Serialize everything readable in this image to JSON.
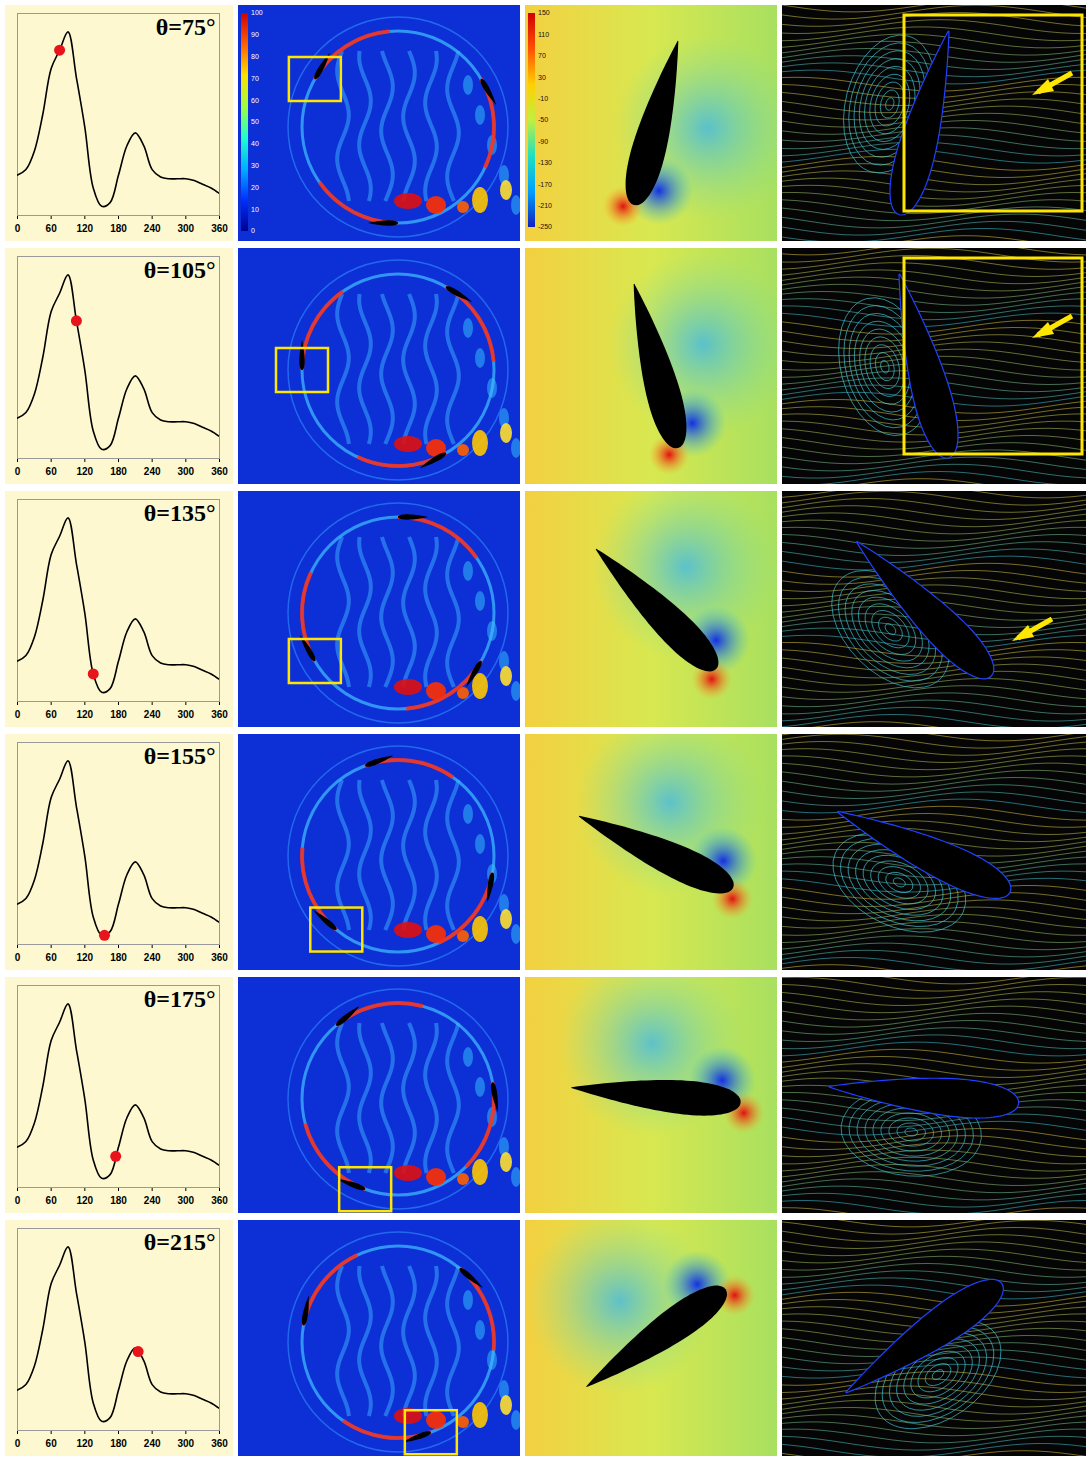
{
  "chart_data": [
    {
      "type": "line",
      "title": "θ=75°",
      "x": [
        0,
        15,
        30,
        45,
        60,
        75,
        90,
        105,
        120,
        135,
        150,
        165,
        180,
        195,
        210,
        225,
        240,
        255,
        270,
        285,
        300,
        315,
        330,
        345,
        360
      ],
      "values": [
        0.22,
        0.25,
        0.35,
        0.55,
        0.8,
        0.9,
        1.0,
        0.75,
        0.48,
        0.15,
        0.05,
        0.07,
        0.22,
        0.38,
        0.45,
        0.38,
        0.25,
        0.21,
        0.2,
        0.2,
        0.2,
        0.19,
        0.17,
        0.15,
        0.12
      ],
      "color": "#000000",
      "highlight": {
        "x": 75,
        "y": 0.9,
        "color": "#e8141b"
      },
      "xlim": [
        0,
        360
      ],
      "xticks": [
        0,
        60,
        120,
        180,
        240,
        300,
        360
      ],
      "ylim": [
        0,
        1.1
      ],
      "tick_labels": "x"
    },
    {
      "type": "line",
      "title": "θ=105°",
      "x": [
        0,
        15,
        30,
        45,
        60,
        75,
        90,
        105,
        120,
        135,
        150,
        165,
        180,
        195,
        210,
        225,
        240,
        255,
        270,
        285,
        300,
        315,
        330,
        345,
        360
      ],
      "values": [
        0.22,
        0.25,
        0.35,
        0.55,
        0.8,
        0.9,
        1.0,
        0.75,
        0.48,
        0.15,
        0.05,
        0.07,
        0.22,
        0.38,
        0.45,
        0.38,
        0.25,
        0.21,
        0.2,
        0.2,
        0.2,
        0.19,
        0.17,
        0.15,
        0.12
      ],
      "color": "#000000",
      "highlight": {
        "x": 105,
        "y": 0.75,
        "color": "#e8141b"
      },
      "xlim": [
        0,
        360
      ],
      "xticks": [
        0,
        60,
        120,
        180,
        240,
        300,
        360
      ],
      "ylim": [
        0,
        1.1
      ],
      "tick_labels": "x"
    },
    {
      "type": "line",
      "title": "θ=135°",
      "x": [
        0,
        15,
        30,
        45,
        60,
        75,
        90,
        105,
        120,
        135,
        150,
        165,
        180,
        195,
        210,
        225,
        240,
        255,
        270,
        285,
        300,
        315,
        330,
        345,
        360
      ],
      "values": [
        0.22,
        0.25,
        0.35,
        0.55,
        0.8,
        0.9,
        1.0,
        0.75,
        0.48,
        0.15,
        0.05,
        0.07,
        0.22,
        0.38,
        0.45,
        0.38,
        0.25,
        0.21,
        0.2,
        0.2,
        0.2,
        0.19,
        0.17,
        0.15,
        0.12
      ],
      "color": "#000000",
      "highlight": {
        "x": 135,
        "y": 0.15,
        "color": "#e8141b"
      },
      "xlim": [
        0,
        360
      ],
      "xticks": [
        0,
        60,
        120,
        180,
        240,
        300,
        360
      ],
      "ylim": [
        0,
        1.1
      ],
      "tick_labels": "x"
    },
    {
      "type": "line",
      "title": "θ=155°",
      "x": [
        0,
        15,
        30,
        45,
        60,
        75,
        90,
        105,
        120,
        135,
        150,
        165,
        180,
        195,
        210,
        225,
        240,
        255,
        270,
        285,
        300,
        315,
        330,
        345,
        360
      ],
      "values": [
        0.22,
        0.25,
        0.35,
        0.55,
        0.8,
        0.9,
        1.0,
        0.75,
        0.48,
        0.15,
        0.05,
        0.07,
        0.22,
        0.38,
        0.45,
        0.38,
        0.25,
        0.21,
        0.2,
        0.2,
        0.2,
        0.19,
        0.17,
        0.15,
        0.12
      ],
      "color": "#000000",
      "highlight": {
        "x": 155,
        "y": 0.05,
        "color": "#e8141b"
      },
      "xlim": [
        0,
        360
      ],
      "xticks": [
        0,
        60,
        120,
        180,
        240,
        300,
        360
      ],
      "ylim": [
        0,
        1.1
      ],
      "tick_labels": "x"
    },
    {
      "type": "line",
      "title": "θ=175°",
      "x": [
        0,
        15,
        30,
        45,
        60,
        75,
        90,
        105,
        120,
        135,
        150,
        165,
        180,
        195,
        210,
        225,
        240,
        255,
        270,
        285,
        300,
        315,
        330,
        345,
        360
      ],
      "values": [
        0.22,
        0.25,
        0.35,
        0.55,
        0.8,
        0.9,
        1.0,
        0.75,
        0.48,
        0.15,
        0.05,
        0.07,
        0.22,
        0.38,
        0.45,
        0.38,
        0.25,
        0.21,
        0.2,
        0.2,
        0.2,
        0.19,
        0.17,
        0.15,
        0.12
      ],
      "color": "#000000",
      "highlight": {
        "x": 175,
        "y": 0.17,
        "color": "#e8141b"
      },
      "xlim": [
        0,
        360
      ],
      "xticks": [
        0,
        60,
        120,
        180,
        240,
        300,
        360
      ],
      "ylim": [
        0,
        1.1
      ],
      "tick_labels": "x"
    },
    {
      "type": "line",
      "title": "θ=215°",
      "x": [
        0,
        15,
        30,
        45,
        60,
        75,
        90,
        105,
        120,
        135,
        150,
        165,
        180,
        195,
        210,
        225,
        240,
        255,
        270,
        285,
        300,
        315,
        330,
        345,
        360
      ],
      "values": [
        0.22,
        0.25,
        0.35,
        0.55,
        0.8,
        0.9,
        1.0,
        0.75,
        0.48,
        0.15,
        0.05,
        0.07,
        0.22,
        0.38,
        0.45,
        0.38,
        0.25,
        0.21,
        0.2,
        0.2,
        0.2,
        0.19,
        0.17,
        0.15,
        0.12
      ],
      "color": "#000000",
      "highlight": {
        "x": 215,
        "y": 0.43,
        "color": "#e8141b"
      },
      "xlim": [
        0,
        360
      ],
      "xticks": [
        0,
        60,
        120,
        180,
        240,
        300,
        360
      ],
      "ylim": [
        0,
        1.1
      ],
      "tick_labels": "x"
    }
  ],
  "fields": {
    "vorticity": {
      "range": [
        0,
        100
      ],
      "ticks": [
        100,
        90,
        80,
        70,
        60,
        50,
        40,
        30,
        20,
        10,
        0
      ]
    },
    "pressure": {
      "range": [
        -250,
        150
      ],
      "ticks": [
        150,
        110,
        70,
        30,
        -10,
        -50,
        -90,
        -130,
        -170,
        -210,
        -250
      ]
    }
  }
}
